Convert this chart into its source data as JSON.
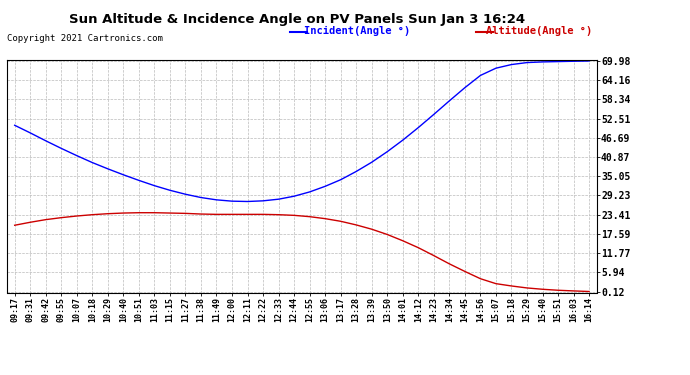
{
  "title": "Sun Altitude & Incidence Angle on PV Panels Sun Jan 3 16:24",
  "copyright": "Copyright 2021 Cartronics.com",
  "legend_incident": "Incident(Angle °)",
  "legend_altitude": "Altitude(Angle °)",
  "incident_color": "#0000ff",
  "altitude_color": "#cc0000",
  "background_color": "#ffffff",
  "plot_bg_color": "#ffffff",
  "grid_color": "#bbbbbb",
  "yticks": [
    0.12,
    5.94,
    11.77,
    17.59,
    23.41,
    29.23,
    35.05,
    40.87,
    46.69,
    52.51,
    58.34,
    64.16,
    69.98
  ],
  "ymin": 0.12,
  "ymax": 69.98,
  "x_labels": [
    "09:17",
    "09:31",
    "09:42",
    "09:55",
    "10:07",
    "10:18",
    "10:29",
    "10:40",
    "10:51",
    "11:03",
    "11:15",
    "11:27",
    "11:38",
    "11:49",
    "12:00",
    "12:11",
    "12:22",
    "12:33",
    "12:44",
    "12:55",
    "13:06",
    "13:17",
    "13:28",
    "13:39",
    "13:50",
    "14:01",
    "14:12",
    "14:23",
    "14:34",
    "14:45",
    "14:56",
    "15:07",
    "15:18",
    "15:29",
    "15:40",
    "15:51",
    "16:03",
    "16:14"
  ],
  "incident_values": [
    50.5,
    48.2,
    45.8,
    43.5,
    41.3,
    39.2,
    37.3,
    35.5,
    33.8,
    32.2,
    30.8,
    29.6,
    28.6,
    27.9,
    27.5,
    27.4,
    27.6,
    28.1,
    29.0,
    30.3,
    32.0,
    34.0,
    36.5,
    39.3,
    42.5,
    46.0,
    49.8,
    53.8,
    57.9,
    61.9,
    65.6,
    67.8,
    68.9,
    69.5,
    69.7,
    69.8,
    69.9,
    69.98
  ],
  "altitude_values": [
    20.2,
    21.1,
    21.9,
    22.5,
    23.0,
    23.4,
    23.7,
    23.9,
    24.0,
    24.0,
    23.9,
    23.8,
    23.6,
    23.5,
    23.5,
    23.5,
    23.5,
    23.4,
    23.2,
    22.8,
    22.2,
    21.4,
    20.3,
    19.0,
    17.4,
    15.5,
    13.4,
    11.0,
    8.5,
    6.2,
    4.0,
    2.5,
    1.8,
    1.2,
    0.8,
    0.5,
    0.3,
    0.12
  ]
}
